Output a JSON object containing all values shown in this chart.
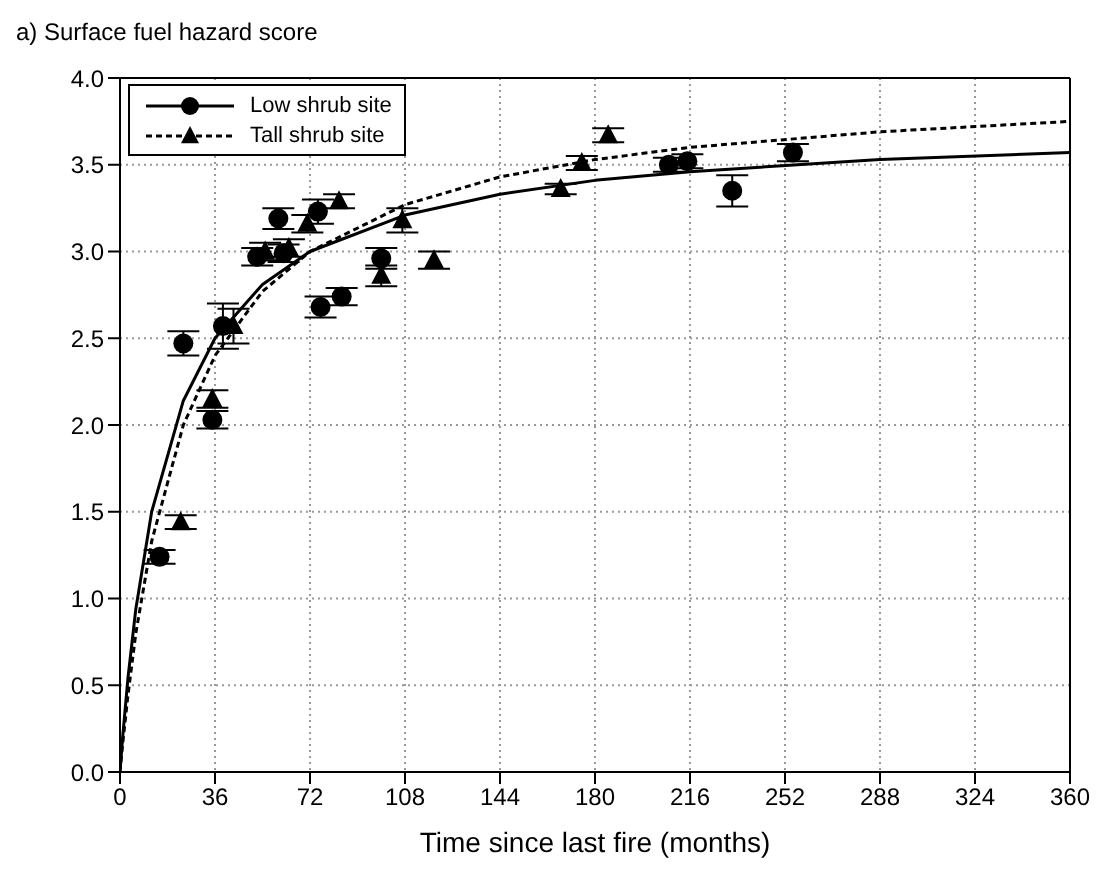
{
  "chart_data": {
    "type": "scatter",
    "title": "a) Surface fuel hazard score",
    "xlabel": "Time since last fire (months)",
    "xlim": [
      0,
      360
    ],
    "xticks": [
      0,
      36,
      72,
      108,
      144,
      180,
      216,
      252,
      288,
      324,
      360
    ],
    "ylim": [
      0,
      4
    ],
    "yticks": [
      {
        "value": 0,
        "label": "0.0"
      },
      0.5,
      {
        "value": 1,
        "label": "1.0"
      },
      1.5,
      {
        "value": 2,
        "label": "2.0"
      },
      2.5,
      {
        "value": 3,
        "label": "3.0"
      },
      3.5,
      {
        "value": 4,
        "label": "4.0"
      }
    ],
    "grid": true,
    "legend": "top left",
    "series": [
      {
        "name": "Low shrub site",
        "marker": "circle",
        "color": "#000000",
        "x": [
          15,
          24,
          35,
          39,
          52,
          60,
          62,
          75,
          76,
          84,
          99,
          208,
          215,
          232,
          255
        ],
        "values": [
          1.24,
          2.47,
          2.03,
          2.57,
          2.97,
          3.19,
          2.99,
          3.23,
          2.68,
          2.74,
          2.96,
          3.5,
          3.52,
          3.35,
          3.57
        ],
        "errors": [
          0.04,
          0.07,
          0.05,
          0.13,
          0.05,
          0.06,
          0.05,
          0.07,
          0.06,
          0.05,
          0.06,
          0.04,
          0.04,
          0.09,
          0.05
        ]
      },
      {
        "name": "Tall shrub site",
        "marker": "triangle",
        "color": "#000000",
        "x": [
          23,
          35,
          43,
          55,
          64,
          71,
          83,
          99,
          107,
          119,
          167,
          175,
          185
        ],
        "values": [
          1.44,
          2.15,
          2.57,
          3.0,
          3.02,
          3.16,
          3.29,
          2.86,
          3.18,
          2.95,
          3.36,
          3.51,
          3.67
        ],
        "errors": [
          0.04,
          0.05,
          0.1,
          0.05,
          0.05,
          0.05,
          0.04,
          0.06,
          0.07,
          0.05,
          0.03,
          0.04,
          0.04
        ]
      },
      {
        "type": "line",
        "line_style": "solid",
        "marker": "none",
        "color": "#000000",
        "x": [
          0,
          1,
          3,
          6,
          12,
          24,
          36,
          54,
          72,
          108,
          144,
          180,
          216,
          288,
          360
        ],
        "values": [
          0,
          0.2,
          0.54,
          0.94,
          1.5,
          2.14,
          2.5,
          2.81,
          3.0,
          3.21,
          3.33,
          3.41,
          3.46,
          3.53,
          3.57
        ]
      },
      {
        "type": "line",
        "line_style": "dotted",
        "marker": "none",
        "color": "#000000",
        "x": [
          0,
          1,
          3,
          6,
          12,
          24,
          36,
          54,
          72,
          108,
          144,
          180,
          216,
          288,
          360
        ],
        "values": [
          0,
          0.16,
          0.44,
          0.8,
          1.33,
          2.0,
          2.4,
          2.77,
          3.0,
          3.27,
          3.43,
          3.53,
          3.6,
          3.69,
          3.75
        ]
      }
    ]
  }
}
